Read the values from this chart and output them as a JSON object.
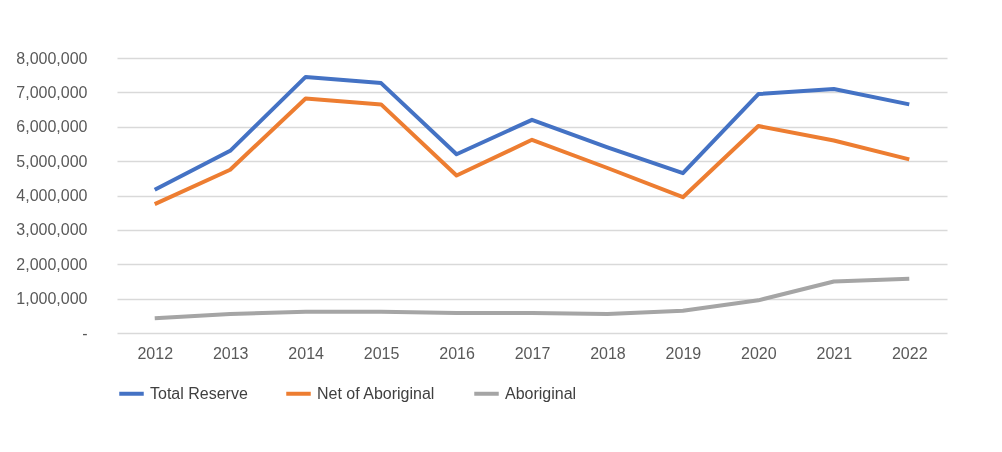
{
  "chart_data": {
    "type": "line",
    "categories": [
      "2012",
      "2013",
      "2014",
      "2015",
      "2016",
      "2017",
      "2018",
      "2019",
      "2020",
      "2021",
      "2022"
    ],
    "series": [
      {
        "name": "Total Reserve",
        "color": "#4472c4",
        "values": [
          4170000,
          5300000,
          7450000,
          7270000,
          5200000,
          6200000,
          5400000,
          4650000,
          6950000,
          7100000,
          6650000
        ]
      },
      {
        "name": "Net of Aboriginal",
        "color": "#ed7d31",
        "values": [
          3750000,
          4750000,
          6820000,
          6650000,
          4580000,
          5620000,
          4800000,
          3950000,
          6020000,
          5600000,
          5050000
        ]
      },
      {
        "name": "Aboriginal",
        "color": "#a5a5a5",
        "values": [
          430000,
          550000,
          620000,
          620000,
          580000,
          580000,
          550000,
          650000,
          950000,
          1500000,
          1580000
        ]
      }
    ],
    "ylim": [
      0,
      8000000
    ],
    "yticks": [
      {
        "value": 0,
        "label": "-"
      },
      {
        "value": 1000000,
        "label": "1,000,000"
      },
      {
        "value": 2000000,
        "label": "2,000,000"
      },
      {
        "value": 3000000,
        "label": "3,000,000"
      },
      {
        "value": 4000000,
        "label": "4,000,000"
      },
      {
        "value": 5000000,
        "label": "5,000,000"
      },
      {
        "value": 6000000,
        "label": "6,000,000"
      },
      {
        "value": 7000000,
        "label": "7,000,000"
      },
      {
        "value": 8000000,
        "label": "8,000,000"
      }
    ],
    "grid": "y",
    "legend": "bottom",
    "marker": "none",
    "line_style": "solid"
  }
}
